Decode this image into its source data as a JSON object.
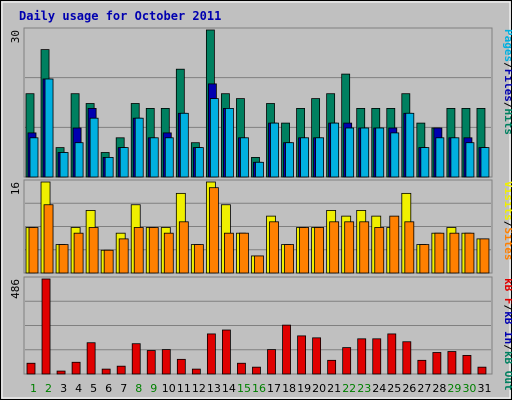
{
  "chart_data": [
    {
      "type": "bar",
      "title": "Daily usage for October 2011",
      "ymax_label": "30",
      "categories": [
        "1",
        "2",
        "3",
        "4",
        "5",
        "6",
        "7",
        "8",
        "9",
        "10",
        "11",
        "12",
        "13",
        "14",
        "15",
        "16",
        "17",
        "18",
        "19",
        "20",
        "21",
        "22",
        "23",
        "24",
        "25",
        "26",
        "27",
        "28",
        "29",
        "30",
        "31"
      ],
      "legend": [
        {
          "text": "Pages",
          "color": "#00b0e0"
        },
        {
          "text": "Files",
          "color": "#0000b0"
        },
        {
          "text": "Hits",
          "color": "#008060"
        }
      ],
      "series": [
        {
          "name": "Hits",
          "color": "#008060",
          "values": [
            17,
            26,
            6,
            17,
            15,
            5,
            8,
            15,
            14,
            14,
            22,
            7,
            30,
            17,
            16,
            4,
            15,
            11,
            14,
            16,
            17,
            21,
            14,
            14,
            14,
            17,
            11,
            10,
            14,
            14,
            14
          ]
        },
        {
          "name": "Files",
          "color": "#0000b0",
          "values": [
            9,
            20,
            5,
            10,
            14,
            4,
            6,
            12,
            8,
            9,
            13,
            6,
            19,
            14,
            8,
            3,
            11,
            7,
            8,
            8,
            11,
            11,
            10,
            10,
            10,
            13,
            6,
            10,
            8,
            8,
            6
          ]
        },
        {
          "name": "Pages",
          "color": "#00b0e0",
          "values": [
            8,
            20,
            5,
            7,
            12,
            4,
            6,
            12,
            8,
            8,
            13,
            6,
            16,
            14,
            8,
            3,
            11,
            7,
            8,
            8,
            11,
            10,
            10,
            10,
            9,
            13,
            6,
            8,
            8,
            7,
            6
          ]
        }
      ]
    },
    {
      "type": "bar",
      "ymax_label": "16",
      "legend": [
        {
          "text": "Visits",
          "color": "#f0f000"
        },
        {
          "text": "Sites",
          "color": "#ff8000"
        }
      ],
      "series": [
        {
          "name": "Visits",
          "color": "#f0f000",
          "values": [
            8,
            16,
            5,
            8,
            11,
            4,
            7,
            12,
            8,
            8,
            14,
            5,
            16,
            12,
            7,
            3,
            10,
            5,
            8,
            8,
            11,
            10,
            11,
            10,
            8,
            14,
            5,
            7,
            8,
            7,
            6
          ]
        },
        {
          "name": "Sites",
          "color": "#ff8000",
          "values": [
            8,
            12,
            5,
            7,
            8,
            4,
            6,
            8,
            8,
            7,
            9,
            5,
            15,
            7,
            7,
            3,
            9,
            5,
            8,
            8,
            9,
            9,
            9,
            8,
            10,
            9,
            5,
            7,
            7,
            7,
            6
          ]
        }
      ]
    },
    {
      "type": "bar",
      "ymax_label": "486",
      "legend": [
        {
          "text": "kB F",
          "color": "#e00000"
        },
        {
          "text": "kB In",
          "color": "#0000b0"
        },
        {
          "text": "kB Out",
          "color": "#008060"
        }
      ],
      "series": [
        {
          "name": "kB F",
          "color": "#e00000",
          "values": [
            55,
            486,
            15,
            60,
            160,
            25,
            40,
            155,
            120,
            125,
            75,
            25,
            205,
            225,
            55,
            35,
            125,
            250,
            195,
            185,
            70,
            135,
            180,
            180,
            205,
            165,
            70,
            110,
            115,
            95,
            35
          ]
        }
      ]
    }
  ]
}
